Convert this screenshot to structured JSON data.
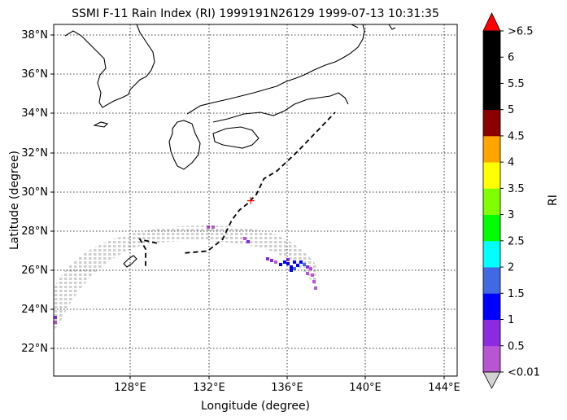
{
  "title": "SSMI F-11 Rain Index (RI) 1999191N26129 1999-07-13 10:31:35",
  "xlabel": "Longitude (degree)",
  "ylabel": "Latitude (degree)",
  "lon_ticks": [
    "128°E",
    "132°E",
    "136°E",
    "140°E",
    "144°E"
  ],
  "lat_ticks": [
    "22°N",
    "24°N",
    "26°N",
    "28°N",
    "30°N",
    "32°N",
    "34°N",
    "36°N",
    "38°N"
  ],
  "colorbar": {
    "label": "RI",
    "tick_labels": [
      "<0.01",
      "0.5",
      "1",
      "1.5",
      "2",
      "2.5",
      "3",
      "3.5",
      "4",
      "4.5",
      "5",
      "5.5",
      "6",
      ">6.5"
    ],
    "colors": [
      "#b855d3",
      "#8a2be2",
      "#0000ff",
      "#4169e1",
      "#00ffff",
      "#00ff00",
      "#7fff00",
      "#ffff00",
      "#ffa500",
      "#8b0000",
      "#000000",
      "#000000",
      "#000000"
    ],
    "under_color": "#d3d3d3",
    "over_color": "#ff0000"
  },
  "chart_data": {
    "type": "map",
    "lon_range": [
      124.0,
      145.5
    ],
    "lat_range": [
      20.5,
      38.5
    ],
    "grid": true,
    "storm_track": [
      [
        131.0,
        26.8
      ],
      [
        132.2,
        26.9
      ],
      [
        133.0,
        27.5
      ],
      [
        133.5,
        28.5
      ],
      [
        133.9,
        29.0
      ],
      [
        134.3,
        29.3
      ],
      [
        134.8,
        29.8
      ],
      [
        135.2,
        30.6
      ],
      [
        135.9,
        31.0
      ],
      [
        137.0,
        32.0
      ],
      [
        138.2,
        33.2
      ],
      [
        139.0,
        34.0
      ]
    ],
    "storm_track_west": [
      [
        129.5,
        27.3
      ],
      [
        128.6,
        27.5
      ],
      [
        128.9,
        27.0
      ],
      [
        128.9,
        26.0
      ]
    ],
    "current_position": [
      134.5,
      29.5
    ]
  }
}
